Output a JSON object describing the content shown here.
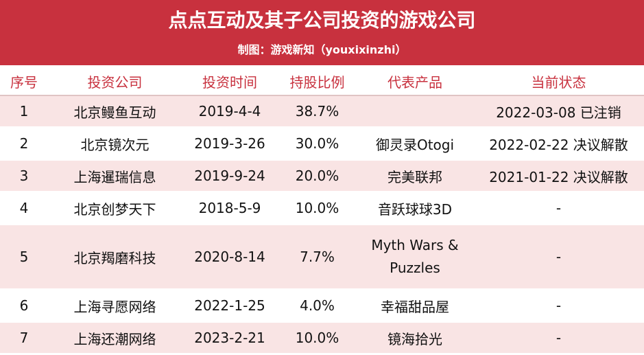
{
  "header": {
    "title": "点点互动及其子公司投资的游戏公司",
    "subtitle": "制图：游戏新知（youxixinzhi）"
  },
  "table": {
    "columns": [
      "序号",
      "投资公司",
      "投资时间",
      "持股比例",
      "代表产品",
      "当前状态"
    ],
    "rows": [
      {
        "no": "1",
        "company": "北京鳗鱼互动",
        "date": "2019-4-4",
        "share": "38.7%",
        "product": "",
        "status": "2022-03-08 已注销"
      },
      {
        "no": "2",
        "company": "北京镜次元",
        "date": "2019-3-26",
        "share": "30.0%",
        "product": "御灵录Otogi",
        "status": "2022-02-22 决议解散"
      },
      {
        "no": "3",
        "company": "上海暹瑞信息",
        "date": "2019-9-24",
        "share": "20.0%",
        "product": "完美联邦",
        "status": "2021-01-22 决议解散"
      },
      {
        "no": "4",
        "company": "北京创梦天下",
        "date": "2018-5-9",
        "share": "10.0%",
        "product": "音跃球球3D",
        "status": "-"
      },
      {
        "no": "5",
        "company": "北京羯磨科技",
        "date": "2020-8-14",
        "share": "7.7%",
        "product": "Myth Wars & Puzzles",
        "status": "-"
      },
      {
        "no": "6",
        "company": "上海寻愿网络",
        "date": "2022-1-25",
        "share": "4.0%",
        "product": "幸福甜品屋",
        "status": "-"
      },
      {
        "no": "7",
        "company": "上海还潮网络",
        "date": "2023-2-21",
        "share": "10.0%",
        "product": "镜海拾光",
        "status": "-"
      }
    ]
  }
}
